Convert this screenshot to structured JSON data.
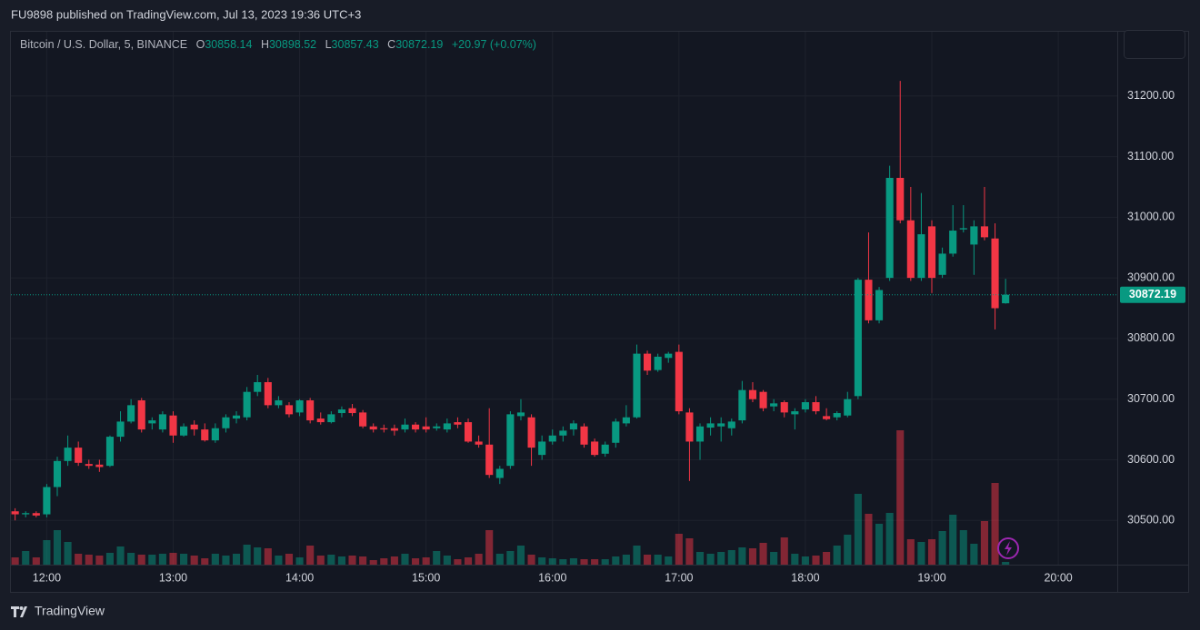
{
  "header": "FU9898 published on TradingView.com, Jul 13, 2023 19:36 UTC+3",
  "footer": "TradingView",
  "chart_data": {
    "type": "candlestick",
    "title": "Bitcoin / U.S. Dollar, 5, BINANCE",
    "ohlc_labels": [
      "O",
      "H",
      "L",
      "C"
    ],
    "change_label": "+20.97 (+0.07%)",
    "up_color": "#089981",
    "down_color": "#f23645",
    "grid": true,
    "x": [
      705,
      710,
      715,
      720,
      725,
      730,
      735,
      740,
      745,
      750,
      755,
      760,
      765,
      770,
      775,
      780,
      785,
      790,
      795,
      800,
      805,
      810,
      815,
      820,
      825,
      830,
      835,
      840,
      845,
      850,
      855,
      860,
      865,
      870,
      875,
      880,
      885,
      890,
      895,
      900,
      905,
      910,
      915,
      920,
      925,
      930,
      935,
      940,
      945,
      950,
      955,
      960,
      965,
      970,
      975,
      980,
      985,
      990,
      995,
      1000,
      1005,
      1010,
      1015,
      1020,
      1025,
      1030,
      1035,
      1040,
      1045,
      1050,
      1055,
      1060,
      1065,
      1070,
      1075,
      1080,
      1085,
      1090,
      1095,
      1100,
      1105,
      1110,
      1115,
      1120,
      1125,
      1130,
      1135,
      1140,
      1145,
      1150,
      1155,
      1160,
      1165,
      1170,
      1175
    ],
    "open": [
      30515,
      30510,
      30512,
      30510,
      30555,
      30598,
      30620,
      30593,
      30592,
      30590,
      30638,
      30663,
      30698,
      30660,
      30650,
      30673,
      30640,
      30658,
      30650,
      30632,
      30652,
      30668,
      30670,
      30712,
      30728,
      30690,
      30690,
      30678,
      30698,
      30668,
      30662,
      30677,
      30685,
      30678,
      30655,
      30652,
      30652,
      30650,
      30658,
      30655,
      30652,
      30650,
      30662,
      30662,
      30630,
      30625,
      30570,
      30590,
      30672,
      30670,
      30608,
      30630,
      30640,
      30650,
      30655,
      30630,
      30610,
      30628,
      30660,
      30670,
      30775,
      30748,
      30768,
      30778,
      30678,
      30630,
      30653,
      30655,
      30652,
      30665,
      30715,
      30712,
      30688,
      30695,
      30675,
      30683,
      30695,
      30672,
      30670,
      30673,
      30705,
      30897,
      30830,
      30900,
      31065,
      30995,
      30900,
      30985,
      30905,
      30940,
      30980,
      30955,
      30985,
      30965,
      30858.14
    ],
    "high": [
      30520,
      30515,
      30515,
      30560,
      30605,
      30640,
      30630,
      30600,
      30600,
      30640,
      30680,
      30700,
      30702,
      30670,
      30680,
      30680,
      30660,
      30665,
      30660,
      30660,
      30675,
      30680,
      30720,
      30740,
      30735,
      30705,
      30695,
      30700,
      30702,
      30678,
      30680,
      30688,
      30692,
      30682,
      30660,
      30658,
      30658,
      30668,
      30662,
      30670,
      30660,
      30668,
      30670,
      30668,
      30640,
      30685,
      30590,
      30680,
      30700,
      30675,
      30640,
      30650,
      30655,
      30665,
      30660,
      30635,
      30630,
      30668,
      30690,
      30790,
      30780,
      30775,
      30778,
      30790,
      30685,
      30660,
      30670,
      30670,
      30668,
      30730,
      30728,
      30715,
      30700,
      30698,
      30685,
      30700,
      30705,
      30685,
      30680,
      30712,
      30900,
      30975,
      30885,
      31085,
      31225,
      31050,
      31040,
      30995,
      30950,
      31020,
      31020,
      30995,
      31050,
      30990,
      30898.52
    ],
    "low": [
      30500,
      30505,
      30505,
      30505,
      30540,
      30590,
      30590,
      30585,
      30580,
      30588,
      30630,
      30660,
      30645,
      30650,
      30645,
      30628,
      30638,
      30640,
      30630,
      30628,
      30645,
      30660,
      30665,
      30705,
      30685,
      30685,
      30670,
      30672,
      30660,
      30658,
      30660,
      30670,
      30672,
      30652,
      30645,
      30645,
      30640,
      30645,
      30645,
      30645,
      30648,
      30645,
      30652,
      30628,
      30620,
      30570,
      30560,
      30585,
      30665,
      30590,
      30600,
      30625,
      30630,
      30640,
      30620,
      30605,
      30605,
      30620,
      30655,
      30668,
      30740,
      30745,
      30760,
      30675,
      30565,
      30600,
      30640,
      30630,
      30640,
      30660,
      30695,
      30680,
      30680,
      30670,
      30650,
      30678,
      30675,
      30665,
      30665,
      30670,
      30700,
      30825,
      30825,
      30895,
      30990,
      30895,
      30895,
      30875,
      30900,
      30935,
      30975,
      30905,
      30962,
      30815,
      30857.43
    ],
    "close": [
      30510,
      30512,
      30508,
      30555,
      30598,
      30620,
      30595,
      30590,
      30588,
      30638,
      30663,
      30690,
      30650,
      30665,
      30675,
      30640,
      30655,
      30650,
      30632,
      30652,
      30670,
      30673,
      30712,
      30728,
      30690,
      30698,
      30675,
      30698,
      30665,
      30662,
      30675,
      30683,
      30677,
      30655,
      30650,
      30650,
      30648,
      30658,
      30650,
      30650,
      30655,
      30660,
      30658,
      30630,
      30625,
      30575,
      30585,
      30675,
      30678,
      30620,
      30630,
      30640,
      30648,
      30660,
      30625,
      30608,
      30625,
      30663,
      30670,
      30775,
      30747,
      30770,
      30775,
      30680,
      30630,
      30655,
      30660,
      30660,
      30663,
      30715,
      30700,
      30685,
      30693,
      30678,
      30680,
      30695,
      30680,
      30667,
      30677,
      30700,
      30897,
      30830,
      30880,
      31065,
      30995,
      30900,
      30972,
      30900,
      30940,
      30978,
      30982,
      30985,
      30967,
      30850,
      30872.19
    ],
    "volume": [
      8,
      15,
      8,
      27,
      38,
      25,
      12,
      11,
      10,
      13,
      20,
      13,
      11,
      11,
      12,
      13,
      12,
      10,
      7,
      12,
      10,
      12,
      22,
      19,
      18,
      10,
      12,
      8,
      21,
      10,
      11,
      9,
      10,
      9,
      5,
      7,
      9,
      12,
      7,
      8,
      15,
      10,
      6,
      8,
      12,
      38,
      12,
      15,
      21,
      11,
      8,
      7,
      6,
      7,
      6,
      6,
      6,
      9,
      11,
      21,
      11,
      11,
      9,
      34,
      29,
      14,
      12,
      14,
      16,
      19,
      18,
      24,
      14,
      30,
      12,
      9,
      10,
      14,
      21,
      33,
      78,
      56,
      45,
      57,
      148,
      28,
      25,
      28,
      37,
      55,
      38,
      23,
      48,
      90,
      3
    ],
    "xlim": [
      703,
      1228
    ],
    "xticks": [
      {
        "value": 720,
        "label": "12:00"
      },
      {
        "value": 780,
        "label": "13:00"
      },
      {
        "value": 840,
        "label": "14:00"
      },
      {
        "value": 900,
        "label": "15:00"
      },
      {
        "value": 960,
        "label": "16:00"
      },
      {
        "value": 1020,
        "label": "17:00"
      },
      {
        "value": 1080,
        "label": "18:00"
      },
      {
        "value": 1140,
        "label": "19:00"
      },
      {
        "value": 1200,
        "label": "20:00"
      }
    ],
    "ylim": [
      30427,
      31306
    ],
    "yticks": [
      {
        "value": 30500,
        "label": "30500.00"
      },
      {
        "value": 30600,
        "label": "30600.00"
      },
      {
        "value": 30700,
        "label": "30700.00"
      },
      {
        "value": 30800,
        "label": "30800.00"
      },
      {
        "value": 30900,
        "label": "30900.00"
      },
      {
        "value": 31000,
        "label": "31000.00"
      },
      {
        "value": 31100,
        "label": "31100.00"
      },
      {
        "value": 31200,
        "label": "31200.00"
      }
    ]
  }
}
